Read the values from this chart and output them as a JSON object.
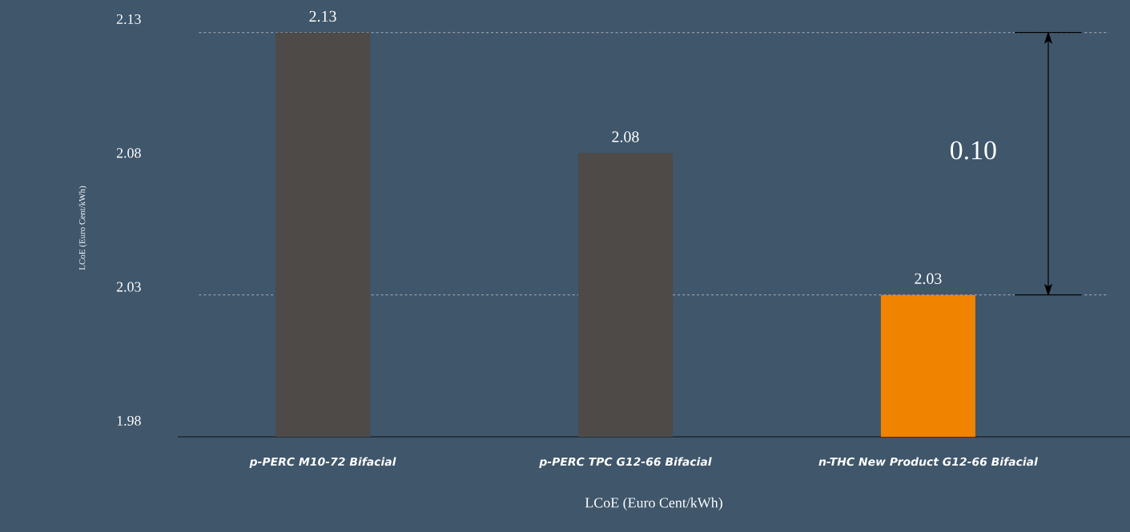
{
  "chart_data": {
    "type": "bar",
    "xlabel": "LCoE (Euro Cent/kWh)",
    "ylabel": "LCoE (Euro Cent/kWh)",
    "categories": [
      "p-PERC M10-72 Bifacial",
      "p-PERC TPC G12-66 Bifacial",
      "n-THC New Product G12-66 Bifacial"
    ],
    "values": [
      2.125,
      2.08,
      2.027
    ],
    "value_labels": [
      "2.13",
      "2.08",
      "2.03"
    ],
    "colors": [
      "#4d4a48",
      "#4d4a48",
      "#f08300"
    ],
    "ylim": [
      1.974,
      2.13
    ],
    "yticks": [
      1.98,
      2.03,
      2.08,
      2.13
    ],
    "ref_lines": [
      {
        "axis": "y",
        "value": 2.125,
        "color": "#c8c8c8",
        "line_style": "dashed"
      },
      {
        "axis": "y",
        "value": 2.027,
        "color": "#c8c8c8",
        "line_style": "dashed"
      }
    ],
    "annotations": [
      "0.10"
    ]
  }
}
